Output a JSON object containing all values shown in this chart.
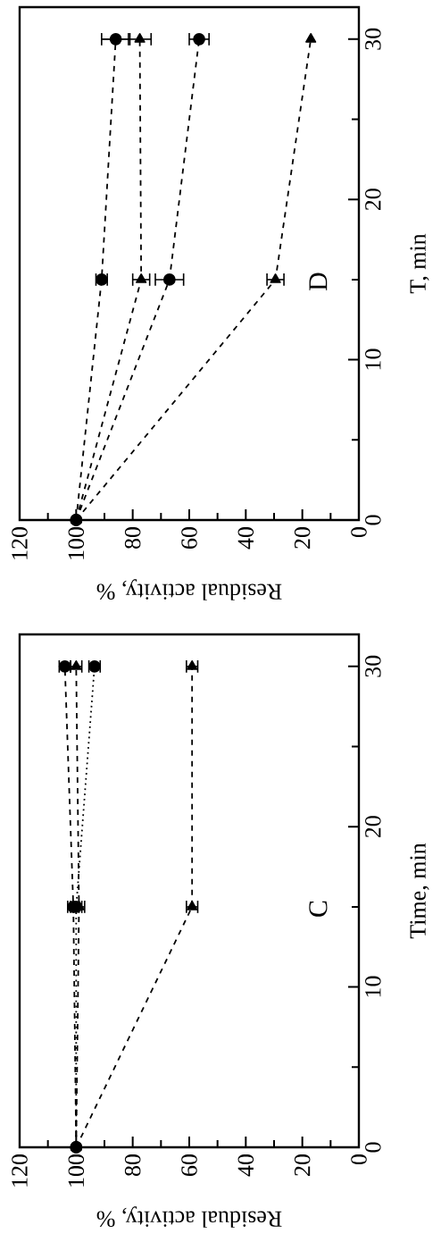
{
  "chart_data": [
    {
      "type": "line",
      "xlabel": "Residual activity, %",
      "ylabel": "Time, min",
      "xlim": [
        120,
        0
      ],
      "xticks": [
        120,
        100,
        80,
        60,
        40,
        20,
        0
      ],
      "ylim": [
        0,
        32
      ],
      "yticks": [
        0,
        10,
        20,
        30
      ],
      "annotations": [
        "C"
      ],
      "series": [
        {
          "color": "#000000",
          "marker": "circle",
          "line_style": "dashed",
          "x": [
            100,
            101,
            104
          ],
          "values": [
            0,
            15,
            30
          ],
          "xerrors": [
            null,
            2,
            2
          ]
        },
        {
          "color": "#000000",
          "marker": "circle",
          "line_style": "dotted",
          "x": [
            100,
            100,
            93.5
          ],
          "values": [
            0,
            15,
            30
          ],
          "xerrors": [
            null,
            2,
            2
          ]
        },
        {
          "color": "#000000",
          "marker": "triangle",
          "line_style": "dashed",
          "x": [
            100,
            99,
            100
          ],
          "values": [
            0,
            15,
            30
          ],
          "xerrors": [
            null,
            2,
            2
          ]
        },
        {
          "color": "#000000",
          "marker": "triangle",
          "line_style": "dashed",
          "x": [
            100,
            59,
            59
          ],
          "values": [
            0,
            15,
            30
          ],
          "xerrors": [
            null,
            2,
            2
          ]
        }
      ]
    },
    {
      "type": "line",
      "xlabel": "Residual activity, %",
      "ylabel": "T, min",
      "xlim": [
        120,
        0
      ],
      "xticks": [
        120,
        100,
        80,
        60,
        40,
        20,
        0
      ],
      "ylim": [
        0,
        32
      ],
      "yticks": [
        0,
        10,
        20,
        30
      ],
      "annotations": [
        "D"
      ],
      "series": [
        {
          "color": "#000000",
          "marker": "circle",
          "line_style": "dashed",
          "x": [
            100,
            91,
            86
          ],
          "values": [
            0,
            15,
            30
          ],
          "xerrors": [
            null,
            2,
            5
          ]
        },
        {
          "color": "#000000",
          "marker": "circle",
          "line_style": "dashed",
          "x": [
            100,
            67,
            56.5
          ],
          "values": [
            0,
            15,
            30
          ],
          "xerrors": [
            null,
            5,
            3.5
          ]
        },
        {
          "color": "#000000",
          "marker": "triangle",
          "line_style": "dashed",
          "x": [
            100,
            77,
            77.5
          ],
          "values": [
            0,
            15,
            30
          ],
          "xerrors": [
            null,
            3,
            4
          ]
        },
        {
          "color": "#000000",
          "marker": "triangle",
          "line_style": "dashed",
          "x": [
            100,
            29.5,
            17
          ],
          "values": [
            0,
            15,
            30
          ],
          "xerrors": [
            null,
            3,
            null
          ]
        }
      ]
    }
  ]
}
